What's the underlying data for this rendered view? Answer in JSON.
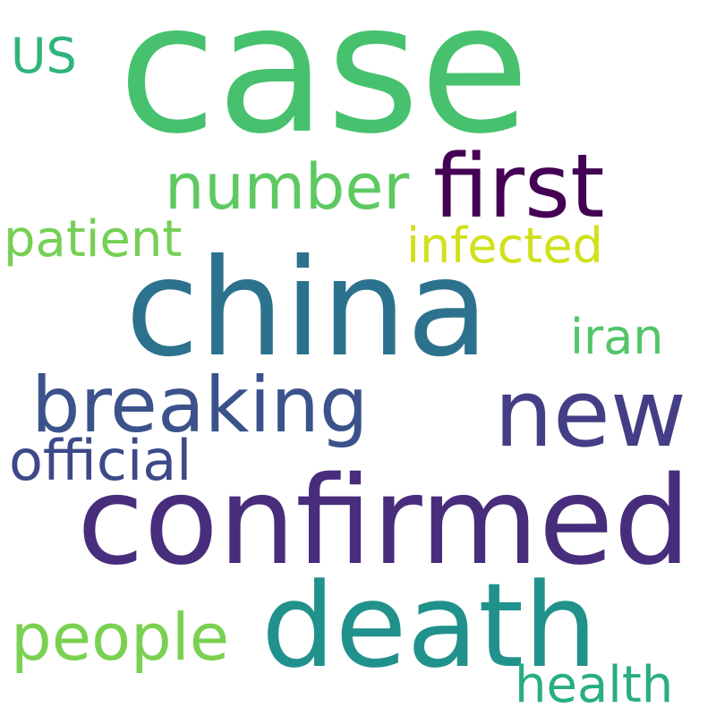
{
  "words": [
    {
      "text": "case",
      "color": "#47c16e"
    },
    {
      "text": "china",
      "color": "#2c728e"
    },
    {
      "text": "confirmed",
      "color": "#472d7b"
    },
    {
      "text": "death",
      "color": "#21918c"
    },
    {
      "text": "new",
      "color": "#433e85"
    },
    {
      "text": "first",
      "color": "#440154"
    },
    {
      "text": "breaking",
      "color": "#3b528b"
    },
    {
      "text": "number",
      "color": "#5ec962"
    },
    {
      "text": "people",
      "color": "#7ad151"
    },
    {
      "text": "official",
      "color": "#3e4989"
    },
    {
      "text": "patient",
      "color": "#75d054"
    },
    {
      "text": "infected",
      "color": "#d0e11c"
    },
    {
      "text": "health",
      "color": "#28ae80"
    },
    {
      "text": "iran",
      "color": "#52c569"
    },
    {
      "text": "US",
      "color": "#2fb47c"
    }
  ]
}
